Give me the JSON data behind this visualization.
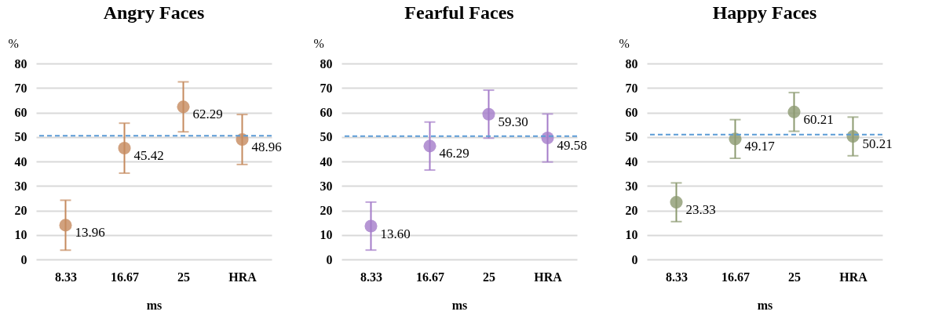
{
  "chart_data": [
    {
      "type": "scatter",
      "title": "Angry Faces",
      "xlabel": "ms",
      "ylabel": "%",
      "categories": [
        "8.33",
        "16.67",
        "25",
        "HRA"
      ],
      "series": [
        {
          "color": "#c58a5e",
          "values": [
            13.96,
            45.42,
            62.29,
            48.96
          ],
          "errors": [
            10.2,
            10.2,
            10.2,
            10.2
          ],
          "value_labels": [
            "13.96",
            "45.42",
            "62.29",
            "48.96"
          ]
        }
      ],
      "ylim": [
        0,
        80
      ],
      "yticks": [
        0,
        10,
        20,
        30,
        40,
        50,
        60,
        70,
        80
      ],
      "grid": "y",
      "marker": "circle",
      "ref_lines": [
        {
          "axis": "y",
          "value": 50.5,
          "color": "#5b9bd5",
          "line_style": "dashed"
        }
      ]
    },
    {
      "type": "scatter",
      "title": "Fearful Faces",
      "xlabel": "ms",
      "ylabel": "%",
      "categories": [
        "8.33",
        "16.67",
        "25",
        "HRA"
      ],
      "series": [
        {
          "color": "#a47cc9",
          "values": [
            13.6,
            46.29,
            59.3,
            49.58
          ],
          "errors": [
            9.8,
            9.8,
            9.8,
            9.8
          ],
          "value_labels": [
            "13.60",
            "46.29",
            "59.30",
            "49.58"
          ]
        }
      ],
      "ylim": [
        0,
        80
      ],
      "yticks": [
        0,
        10,
        20,
        30,
        40,
        50,
        60,
        70,
        80
      ],
      "grid": "y",
      "marker": "circle",
      "ref_lines": [
        {
          "axis": "y",
          "value": 50.3,
          "color": "#5b9bd5",
          "line_style": "dashed"
        }
      ]
    },
    {
      "type": "scatter",
      "title": "Happy Faces",
      "xlabel": "ms",
      "ylabel": "%",
      "categories": [
        "8.33",
        "16.67",
        "25",
        "HRA"
      ],
      "series": [
        {
          "color": "#8c9a70",
          "values": [
            23.33,
            49.17,
            60.21,
            50.21
          ],
          "errors": [
            7.9,
            7.9,
            7.9,
            7.9
          ],
          "value_labels": [
            "23.33",
            "49.17",
            "60.21",
            "50.21"
          ]
        }
      ],
      "ylim": [
        0,
        80
      ],
      "yticks": [
        0,
        10,
        20,
        30,
        40,
        50,
        60,
        70,
        80
      ],
      "grid": "y",
      "marker": "circle",
      "ref_lines": [
        {
          "axis": "y",
          "value": 51.0,
          "color": "#5b9bd5",
          "line_style": "dashed"
        }
      ]
    }
  ]
}
